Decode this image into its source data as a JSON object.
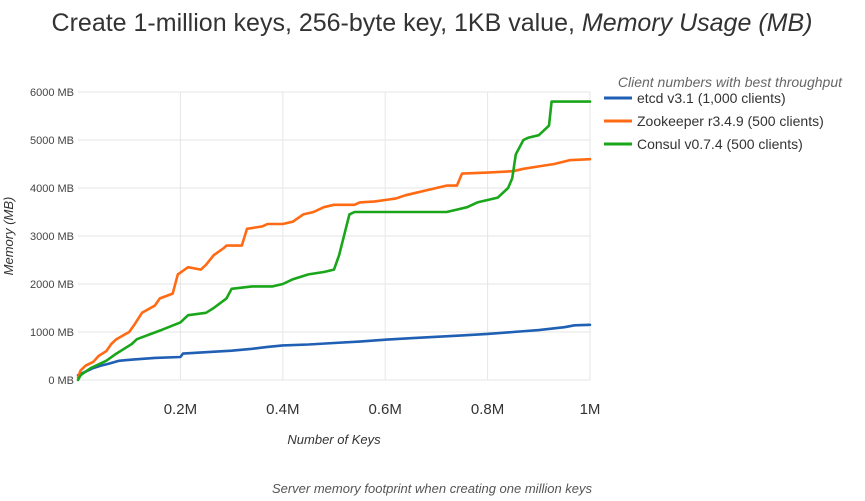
{
  "chart_data": {
    "type": "line",
    "title": "Create 1-million keys, 256-byte key, 1KB value, ",
    "title_em": "Memory Usage (MB)",
    "xlabel": "Number of Keys",
    "ylabel": "Memory (MB)",
    "caption": "Server memory footprint when creating one million keys",
    "xlim": [
      0,
      1000000
    ],
    "ylim": [
      0,
      6000
    ],
    "xticks": [
      {
        "value": 200000,
        "label": "0.2M"
      },
      {
        "value": 400000,
        "label": "0.4M"
      },
      {
        "value": 600000,
        "label": "0.6M"
      },
      {
        "value": 800000,
        "label": "0.8M"
      },
      {
        "value": 1000000,
        "label": "1M"
      }
    ],
    "yticks": [
      {
        "value": 0,
        "label": "0 MB"
      },
      {
        "value": 1000,
        "label": "1000 MB"
      },
      {
        "value": 2000,
        "label": "2000 MB"
      },
      {
        "value": 3000,
        "label": "3000 MB"
      },
      {
        "value": 4000,
        "label": "4000 MB"
      },
      {
        "value": 5000,
        "label": "5000 MB"
      },
      {
        "value": 6000,
        "label": "6000 MB"
      }
    ],
    "grid": true,
    "legend_title": "Client numbers with best throughput",
    "legend_position": "top-right",
    "series": [
      {
        "name": "etcd v3.1 (1,000 clients)",
        "color": "#1f5fb4",
        "x": [
          0,
          10000,
          20000,
          30000,
          45000,
          60000,
          80000,
          110000,
          150000,
          200000,
          205000,
          250000,
          300000,
          340000,
          370000,
          400000,
          450000,
          500000,
          550000,
          600000,
          650000,
          700000,
          750000,
          800000,
          850000,
          900000,
          950000,
          970000,
          1000000
        ],
        "y": [
          100,
          150,
          200,
          250,
          300,
          340,
          400,
          430,
          460,
          480,
          550,
          580,
          610,
          650,
          690,
          720,
          740,
          770,
          800,
          840,
          870,
          900,
          930,
          960,
          1000,
          1040,
          1100,
          1140,
          1150
        ]
      },
      {
        "name": "Zookeeper r3.4.9 (500 clients)",
        "color": "#ff6a13",
        "x": [
          0,
          5000,
          15000,
          30000,
          40000,
          55000,
          65000,
          75000,
          100000,
          110000,
          125000,
          150000,
          160000,
          185000,
          195000,
          215000,
          240000,
          250000,
          265000,
          285000,
          290000,
          320000,
          330000,
          360000,
          370000,
          400000,
          420000,
          440000,
          460000,
          480000,
          500000,
          540000,
          550000,
          580000,
          600000,
          620000,
          640000,
          660000,
          680000,
          700000,
          720000,
          740000,
          750000,
          800000,
          850000,
          870000,
          900000,
          930000,
          960000,
          1000000
        ],
        "y": [
          50,
          200,
          300,
          380,
          500,
          600,
          750,
          850,
          1000,
          1150,
          1400,
          1550,
          1700,
          1800,
          2200,
          2350,
          2300,
          2400,
          2600,
          2750,
          2800,
          2800,
          3150,
          3200,
          3250,
          3250,
          3300,
          3450,
          3500,
          3600,
          3650,
          3650,
          3700,
          3720,
          3750,
          3780,
          3850,
          3900,
          3950,
          4000,
          4050,
          4050,
          4300,
          4320,
          4350,
          4400,
          4450,
          4500,
          4580,
          4600
        ]
      },
      {
        "name": "Consul v0.7.4 (500 clients)",
        "color": "#1aa61a",
        "x": [
          0,
          5000,
          25000,
          55000,
          75000,
          90000,
          105000,
          115000,
          140000,
          165000,
          200000,
          215000,
          250000,
          265000,
          290000,
          300000,
          340000,
          380000,
          400000,
          420000,
          450000,
          480000,
          500000,
          510000,
          530000,
          540000,
          560000,
          600000,
          640000,
          680000,
          720000,
          740000,
          760000,
          780000,
          800000,
          820000,
          840000,
          848000,
          855000,
          870000,
          880000,
          900000,
          920000,
          925000,
          960000,
          1000000
        ],
        "y": [
          0,
          100,
          250,
          400,
          550,
          650,
          750,
          850,
          950,
          1050,
          1200,
          1350,
          1400,
          1500,
          1700,
          1900,
          1950,
          1950,
          2000,
          2100,
          2200,
          2250,
          2300,
          2600,
          3450,
          3500,
          3500,
          3500,
          3500,
          3500,
          3500,
          3550,
          3600,
          3700,
          3750,
          3800,
          4000,
          4200,
          4700,
          5000,
          5050,
          5100,
          5300,
          5800,
          5800,
          5800
        ]
      }
    ]
  }
}
